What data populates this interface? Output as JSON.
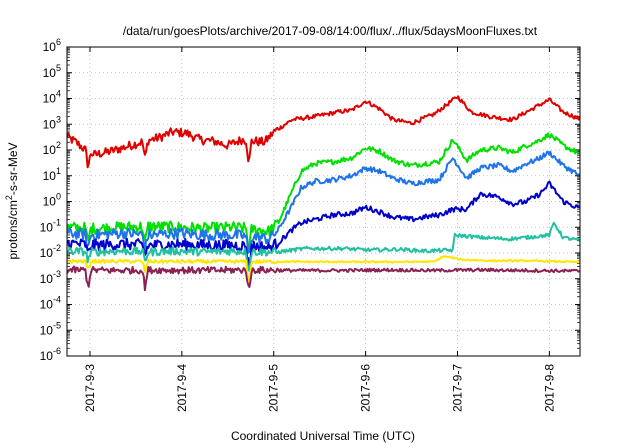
{
  "chart_data": {
    "type": "line",
    "title": "/data/run/goesPlots/archive/2017-09-08/14:00/flux/../flux/5daysMoonFluxes.txt",
    "xlabel": "Coordinated Universal Time (UTC)",
    "ylabel": {
      "prefix": "protons/cm",
      "sup": "2",
      "suffix": "-s-sr-MeV"
    },
    "x_unit": "days",
    "xlim": [
      "2017-09-03 00:00",
      "2017-09-08 14:00"
    ],
    "x_ticks": [
      {
        "t": 0.25,
        "label": "2017-9-3"
      },
      {
        "t": 1.25,
        "label": "2017-9-4"
      },
      {
        "t": 2.25,
        "label": "2017-9-5"
      },
      {
        "t": 3.25,
        "label": "2017-9-6"
      },
      {
        "t": 4.25,
        "label": "2017-9-7"
      },
      {
        "t": 5.25,
        "label": "2017-9-8"
      }
    ],
    "y_scale": "log",
    "ylim_exp": [
      -6,
      6
    ],
    "y_ticks_exp": [
      -6,
      -5,
      -4,
      -3,
      -2,
      -1,
      0,
      1,
      2,
      3,
      4,
      5,
      6
    ],
    "y_tick_base": "10",
    "grid": "dotted",
    "series": [
      {
        "color": "#e00000",
        "points": [
          [
            -0.02,
            350
          ],
          [
            0.1,
            200
          ],
          [
            0.2,
            100
          ],
          [
            0.3,
            65
          ],
          [
            0.45,
            85
          ],
          [
            0.6,
            120
          ],
          [
            0.8,
            200
          ],
          [
            1.0,
            300
          ],
          [
            1.15,
            500
          ],
          [
            1.3,
            450
          ],
          [
            1.45,
            250
          ],
          [
            1.6,
            220
          ],
          [
            1.75,
            150
          ],
          [
            1.9,
            250
          ],
          [
            2.05,
            220
          ],
          [
            2.15,
            200
          ],
          [
            2.25,
            500
          ],
          [
            2.45,
            1500
          ],
          [
            2.7,
            2000
          ],
          [
            2.95,
            3000
          ],
          [
            3.1,
            3500
          ],
          [
            3.25,
            8000
          ],
          [
            3.4,
            4000
          ],
          [
            3.55,
            1500
          ],
          [
            3.75,
            1100
          ],
          [
            4.0,
            2500
          ],
          [
            4.25,
            12000
          ],
          [
            4.4,
            3000
          ],
          [
            4.6,
            2000
          ],
          [
            4.85,
            1500
          ],
          [
            5.0,
            3000
          ],
          [
            5.25,
            9000
          ],
          [
            5.4,
            3000
          ],
          [
            5.6,
            1500
          ],
          [
            5.75,
            1000
          ],
          [
            5.88,
            800
          ]
        ]
      },
      {
        "color": "#00e000",
        "points": [
          [
            -0.02,
            0.1
          ],
          [
            0.3,
            0.09
          ],
          [
            0.6,
            0.1
          ],
          [
            0.9,
            0.11
          ],
          [
            1.2,
            0.1
          ],
          [
            1.5,
            0.09
          ],
          [
            1.8,
            0.1
          ],
          [
            2.1,
            0.08
          ],
          [
            2.2,
            0.07
          ],
          [
            2.3,
            0.15
          ],
          [
            2.45,
            2.5
          ],
          [
            2.55,
            15
          ],
          [
            2.7,
            30
          ],
          [
            2.9,
            35
          ],
          [
            3.1,
            50
          ],
          [
            3.25,
            120
          ],
          [
            3.4,
            90
          ],
          [
            3.55,
            40
          ],
          [
            3.75,
            25
          ],
          [
            3.9,
            30
          ],
          [
            4.05,
            35
          ],
          [
            4.2,
            250
          ],
          [
            4.35,
            40
          ],
          [
            4.5,
            100
          ],
          [
            4.7,
            120
          ],
          [
            4.85,
            80
          ],
          [
            5.0,
            150
          ],
          [
            5.1,
            200
          ],
          [
            5.25,
            400
          ],
          [
            5.4,
            150
          ],
          [
            5.55,
            80
          ],
          [
            5.7,
            30
          ],
          [
            5.8,
            15
          ],
          [
            5.88,
            10
          ]
        ]
      },
      {
        "color": "#1e74e8",
        "points": [
          [
            -0.02,
            0.06
          ],
          [
            0.3,
            0.05
          ],
          [
            0.6,
            0.06
          ],
          [
            0.9,
            0.05
          ],
          [
            1.2,
            0.06
          ],
          [
            1.5,
            0.05
          ],
          [
            1.8,
            0.05
          ],
          [
            2.1,
            0.04
          ],
          [
            2.2,
            0.035
          ],
          [
            2.3,
            0.08
          ],
          [
            2.45,
            0.7
          ],
          [
            2.55,
            3.5
          ],
          [
            2.7,
            6
          ],
          [
            2.9,
            7
          ],
          [
            3.1,
            10
          ],
          [
            3.25,
            20
          ],
          [
            3.4,
            15
          ],
          [
            3.55,
            8
          ],
          [
            3.75,
            5
          ],
          [
            3.9,
            6
          ],
          [
            4.05,
            7
          ],
          [
            4.2,
            50
          ],
          [
            4.35,
            8
          ],
          [
            4.5,
            20
          ],
          [
            4.7,
            25
          ],
          [
            4.85,
            15
          ],
          [
            5.0,
            30
          ],
          [
            5.1,
            40
          ],
          [
            5.25,
            80
          ],
          [
            5.4,
            25
          ],
          [
            5.55,
            12
          ],
          [
            5.7,
            4
          ],
          [
            5.8,
            2.5
          ],
          [
            5.88,
            2
          ]
        ]
      },
      {
        "color": "#0000cc",
        "points": [
          [
            -0.02,
            0.025
          ],
          [
            0.3,
            0.02
          ],
          [
            0.6,
            0.022
          ],
          [
            0.9,
            0.02
          ],
          [
            1.2,
            0.022
          ],
          [
            1.5,
            0.02
          ],
          [
            1.8,
            0.02
          ],
          [
            2.1,
            0.018
          ],
          [
            2.2,
            0.016
          ],
          [
            2.3,
            0.025
          ],
          [
            2.45,
            0.08
          ],
          [
            2.55,
            0.15
          ],
          [
            2.7,
            0.2
          ],
          [
            2.9,
            0.3
          ],
          [
            3.1,
            0.35
          ],
          [
            3.25,
            0.6
          ],
          [
            3.4,
            0.4
          ],
          [
            3.55,
            0.25
          ],
          [
            3.75,
            0.2
          ],
          [
            3.9,
            0.25
          ],
          [
            4.05,
            0.3
          ],
          [
            4.2,
            0.5
          ],
          [
            4.35,
            0.5
          ],
          [
            4.5,
            2.0
          ],
          [
            4.7,
            1.5
          ],
          [
            4.85,
            0.8
          ],
          [
            5.0,
            1.0
          ],
          [
            5.15,
            2.0
          ],
          [
            5.25,
            5.0
          ],
          [
            5.4,
            1.0
          ],
          [
            5.55,
            0.6
          ],
          [
            5.7,
            0.3
          ],
          [
            5.8,
            0.15
          ],
          [
            5.88,
            0.12
          ]
        ]
      },
      {
        "color": "#20c0a0",
        "points": [
          [
            -0.02,
            0.012
          ],
          [
            0.3,
            0.011
          ],
          [
            0.6,
            0.012
          ],
          [
            0.9,
            0.011
          ],
          [
            1.2,
            0.012
          ],
          [
            1.5,
            0.011
          ],
          [
            1.8,
            0.012
          ],
          [
            2.1,
            0.011
          ],
          [
            2.3,
            0.011
          ],
          [
            2.45,
            0.013
          ],
          [
            2.6,
            0.015
          ],
          [
            3.0,
            0.015
          ],
          [
            3.3,
            0.013
          ],
          [
            3.6,
            0.014
          ],
          [
            3.9,
            0.012
          ],
          [
            4.2,
            0.013
          ],
          [
            4.22,
            0.05
          ],
          [
            4.5,
            0.04
          ],
          [
            4.8,
            0.035
          ],
          [
            5.0,
            0.04
          ],
          [
            5.25,
            0.05
          ],
          [
            5.3,
            0.15
          ],
          [
            5.4,
            0.04
          ],
          [
            5.6,
            0.03
          ],
          [
            5.75,
            0.018
          ],
          [
            5.88,
            0.015
          ]
        ]
      },
      {
        "color": "#ffe600",
        "points": [
          [
            -0.02,
            0.0048
          ],
          [
            1.0,
            0.0047
          ],
          [
            2.0,
            0.0046
          ],
          [
            2.5,
            0.0046
          ],
          [
            3.0,
            0.0045
          ],
          [
            3.5,
            0.0045
          ],
          [
            4.0,
            0.0046
          ],
          [
            4.1,
            0.0075
          ],
          [
            4.3,
            0.0055
          ],
          [
            4.6,
            0.005
          ],
          [
            5.0,
            0.005
          ],
          [
            5.5,
            0.0045
          ],
          [
            5.88,
            0.0042
          ]
        ]
      },
      {
        "color": "#8b2252",
        "points": [
          [
            -0.02,
            0.0022
          ],
          [
            0.5,
            0.0021
          ],
          [
            1.0,
            0.0022
          ],
          [
            1.5,
            0.0021
          ],
          [
            2.0,
            0.0022
          ],
          [
            2.5,
            0.0021
          ],
          [
            3.0,
            0.0021
          ],
          [
            3.5,
            0.0022
          ],
          [
            4.0,
            0.0021
          ],
          [
            4.5,
            0.0022
          ],
          [
            5.0,
            0.0021
          ],
          [
            5.5,
            0.002
          ],
          [
            5.88,
            0.0021
          ]
        ]
      }
    ],
    "dips": [
      {
        "t": 0.23,
        "color": "#8b2252",
        "min": 0.0012,
        "depth": [
          0.6,
          0.6,
          0.55,
          0.4,
          0.35,
          0.35,
          0.7
        ]
      },
      {
        "t": 0.85,
        "color": "#8b2252",
        "min": 0.0013,
        "depth": [
          0.7,
          0.7,
          0.6,
          0.45,
          0.4,
          0.4,
          0.7
        ]
      },
      {
        "t": 1.98,
        "color": "#8b2252",
        "min": 0.0005,
        "depth": [
          0.9,
          0.9,
          0.85,
          0.85,
          0.8,
          0.9,
          0.9
        ]
      }
    ]
  }
}
